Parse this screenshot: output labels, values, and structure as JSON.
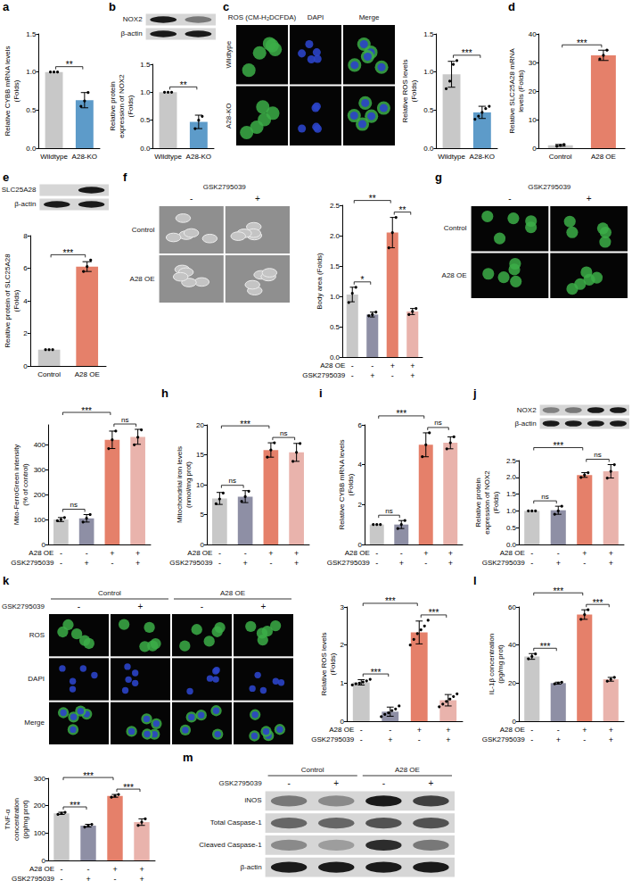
{
  "chart_data": [
    {
      "letter": "a",
      "type": "bar",
      "categories": [
        "Wildtype",
        "A28-KO"
      ],
      "values": [
        1.0,
        0.63
      ],
      "errors": [
        0,
        0.1
      ],
      "points": [
        [
          1,
          1,
          1
        ],
        [
          0.55,
          0.62,
          0.73
        ]
      ],
      "colors": [
        "#c8c8c8",
        "#5d9bc9"
      ],
      "ylabel": "Relative CYBB mRNA levels (Folds)",
      "ylim": [
        0,
        1.5
      ],
      "yticks": [
        {
          "value": 0,
          "label": "0.0"
        },
        0.5,
        {
          "value": 1,
          "label": "1.0"
        },
        1.5
      ],
      "annotations": [
        {
          "from": 0,
          "to": 1,
          "text": "**"
        }
      ]
    },
    {
      "type": "bar",
      "categories": [
        "Wildtype",
        "A28-KO"
      ],
      "values": [
        1.0,
        0.47
      ],
      "errors": [
        0,
        0.12
      ],
      "points": [
        [
          1,
          1,
          1
        ],
        [
          0.35,
          0.5,
          0.57
        ]
      ],
      "colors": [
        "#c8c8c8",
        "#5d9bc9"
      ],
      "ylabel": "Relative protein expression of NOX2 (Folds)",
      "ylim": [
        0,
        1.5
      ],
      "yticks": [
        {
          "value": 0,
          "label": "0.0"
        },
        0.5,
        {
          "value": 1,
          "label": "1.0"
        },
        1.5
      ],
      "annotations": [
        {
          "from": 0,
          "to": 1,
          "text": "**"
        }
      ]
    },
    {
      "type": "bar",
      "categories": [
        "Wildtype",
        "A28-KO"
      ],
      "values": [
        0.97,
        0.47
      ],
      "errors": [
        0.17,
        0.08
      ],
      "points": [
        [
          0.78,
          0.88,
          1.1,
          1.15
        ],
        [
          0.38,
          0.42,
          0.47,
          0.52,
          0.55
        ]
      ],
      "colors": [
        "#c8c8c8",
        "#5d9bc9"
      ],
      "ylabel": "Relative ROS levels (Folds)",
      "ylim": [
        0,
        1.5
      ],
      "yticks": [
        {
          "value": 0,
          "label": "0.0"
        },
        0.5,
        {
          "value": 1,
          "label": "1.0"
        },
        1.5
      ],
      "annotations": [
        {
          "from": 0,
          "to": 1,
          "text": "***"
        }
      ]
    },
    {
      "letter": "d",
      "type": "bar",
      "categories": [
        "Control",
        "A28 OE"
      ],
      "values": [
        1.0,
        32.5
      ],
      "errors": [
        0.3,
        1.8
      ],
      "points": [
        [
          0.7,
          1.0,
          1.3
        ],
        [
          31.2,
          32.5,
          34.3
        ]
      ],
      "colors": [
        "#c8c8c8",
        "#e5806a"
      ],
      "ylabel": "Relative SLC25A28 mRNA levels (Folds)",
      "ylim": [
        0,
        40
      ],
      "yticks": [
        0,
        10,
        20,
        30,
        40
      ],
      "annotations": [
        {
          "from": 0,
          "to": 1,
          "text": "***"
        }
      ]
    },
    {
      "type": "bar",
      "categories": [
        "Control",
        "A28 OE"
      ],
      "values": [
        1.0,
        6.1
      ],
      "errors": [
        0,
        0.3
      ],
      "points": [
        [
          1,
          1,
          1
        ],
        [
          5.8,
          6.1,
          6.5
        ]
      ],
      "colors": [
        "#c8c8c8",
        "#e5806a"
      ],
      "ylabel": "Realtive protein of SLC25A28 (Folds)",
      "ylim": [
        0,
        8
      ],
      "yticks": [
        0,
        2,
        4,
        6,
        8
      ],
      "annotations": [
        {
          "from": 0,
          "to": 1,
          "text": "***"
        }
      ]
    },
    {
      "type": "bar",
      "condition_rows": [
        {
          "label": "A28 OE",
          "signs": [
            "-",
            "-",
            "+",
            "+"
          ]
        },
        {
          "label": "GSK2795039",
          "signs": [
            "-",
            "+",
            "-",
            "+"
          ]
        }
      ],
      "values": [
        1.03,
        0.7,
        2.05,
        0.75
      ],
      "errors": [
        0.12,
        0.04,
        0.25,
        0.05
      ],
      "points": [
        [
          0.9,
          1.05,
          1.15
        ],
        [
          0.68,
          0.7,
          0.74
        ],
        [
          1.8,
          2.05,
          2.3
        ],
        [
          0.7,
          0.75,
          0.8
        ]
      ],
      "colors": [
        "#c8c8c8",
        "#8e8fa5",
        "#e5806a",
        "#e9b3ac"
      ],
      "ylabel": "Body area (Folds)",
      "ylim": [
        0,
        2.5
      ],
      "yticks": [
        {
          "value": 0,
          "label": "0.0"
        },
        0.5,
        {
          "value": 1,
          "label": "1.0"
        },
        1.5,
        {
          "value": 2,
          "label": "2.0"
        },
        2.5
      ],
      "annotations": [
        {
          "from": 0,
          "to": 1,
          "text": "*"
        },
        {
          "from": 2,
          "to": 3,
          "text": "**"
        },
        {
          "from": 0,
          "to": 2,
          "text": "**"
        }
      ]
    },
    {
      "type": "bar",
      "condition_rows": [
        {
          "label": "A28 OE",
          "signs": [
            "-",
            "-",
            "+",
            "+"
          ]
        },
        {
          "label": "GSK2795039",
          "signs": [
            "-",
            "+",
            "-",
            "+"
          ]
        }
      ],
      "values": [
        100,
        105,
        420,
        432
      ],
      "errors": [
        8,
        15,
        35,
        30
      ],
      "points": [
        [
          95,
          100,
          108
        ],
        [
          90,
          105,
          120
        ],
        [
          385,
          420,
          455
        ],
        [
          400,
          430,
          460
        ]
      ],
      "colors": [
        "#c8c8c8",
        "#8e8fa5",
        "#e5806a",
        "#e9b3ac"
      ],
      "ylabel": "Mito-FerroGreen intensity (% of control)",
      "ylim": [
        0,
        480
      ],
      "yticks": [
        0,
        100,
        200,
        300,
        400
      ],
      "annotations": [
        {
          "from": 0,
          "to": 1,
          "text": "ns"
        },
        {
          "from": 2,
          "to": 3,
          "text": "ns"
        },
        {
          "from": 0,
          "to": 2,
          "text": "***"
        }
      ]
    },
    {
      "letter": "h",
      "type": "bar",
      "condition_rows": [
        {
          "label": "A28 OE",
          "signs": [
            "-",
            "-",
            "+",
            "+"
          ]
        },
        {
          "label": "GSK2795039",
          "signs": [
            "-",
            "+",
            "-",
            "+"
          ]
        }
      ],
      "values": [
        7.7,
        8.0,
        15.8,
        15.4
      ],
      "errors": [
        1.0,
        1.0,
        1.2,
        1.5
      ],
      "points": [
        [
          6.8,
          7.6,
          8.6
        ],
        [
          7.2,
          8.0,
          8.9
        ],
        [
          14.6,
          15.8,
          17.0
        ],
        [
          13.9,
          15.4,
          16.9
        ]
      ],
      "colors": [
        "#c8c8c8",
        "#8e8fa5",
        "#e5806a",
        "#e9b3ac"
      ],
      "ylabel": "Mitochondrial iron levels (nmol/mg prot)",
      "ylim": [
        0,
        20
      ],
      "yticks": [
        0,
        5,
        10,
        15,
        20
      ],
      "annotations": [
        {
          "from": 0,
          "to": 1,
          "text": "ns"
        },
        {
          "from": 2,
          "to": 3,
          "text": "ns"
        },
        {
          "from": 0,
          "to": 2,
          "text": "***"
        }
      ]
    },
    {
      "letter": "i",
      "type": "bar",
      "condition_rows": [
        {
          "label": "A28 OE",
          "signs": [
            "-",
            "-",
            "+",
            "+"
          ]
        },
        {
          "label": "GSK2795039",
          "signs": [
            "-",
            "+",
            "-",
            "+"
          ]
        }
      ],
      "values": [
        1.0,
        1.0,
        5.0,
        5.1
      ],
      "errors": [
        0,
        0.2,
        0.6,
        0.3
      ],
      "points": [
        [
          1,
          1,
          1
        ],
        [
          0.8,
          1.0,
          1.2
        ],
        [
          4.4,
          5.0,
          5.6
        ],
        [
          4.8,
          5.1,
          5.4
        ]
      ],
      "colors": [
        "#c8c8c8",
        "#8e8fa5",
        "#e5806a",
        "#e9b3ac"
      ],
      "ylabel": "Relative CYBB mRNA levels (Folds)",
      "ylim": [
        0,
        6
      ],
      "yticks": [
        0,
        2,
        4,
        6
      ],
      "annotations": [
        {
          "from": 0,
          "to": 1,
          "text": "ns"
        },
        {
          "from": 2,
          "to": 3,
          "text": "ns"
        },
        {
          "from": 0,
          "to": 2,
          "text": "***"
        }
      ]
    },
    {
      "type": "bar",
      "condition_rows": [
        {
          "label": "A28 OE",
          "signs": [
            "-",
            "-",
            "+",
            "+"
          ]
        },
        {
          "label": "GSK2795039",
          "signs": [
            "-",
            "+",
            "-",
            "+"
          ]
        }
      ],
      "values": [
        1.0,
        1.02,
        2.07,
        2.18
      ],
      "errors": [
        0,
        0.12,
        0.07,
        0.2
      ],
      "points": [
        [
          1,
          1,
          1
        ],
        [
          0.9,
          1.0,
          1.14
        ],
        [
          2.0,
          2.07,
          2.14
        ],
        [
          1.98,
          2.18,
          2.38
        ]
      ],
      "colors": [
        "#c8c8c8",
        "#8e8fa5",
        "#e5806a",
        "#e9b3ac"
      ],
      "ylabel": "Relative protein expression of NOX2 (Folds)",
      "ylim": [
        0,
        2.5
      ],
      "yticks": [
        {
          "value": 0,
          "label": "0.0"
        },
        0.5,
        {
          "value": 1,
          "label": "1.0"
        },
        1.5,
        {
          "value": 2,
          "label": "2.0"
        },
        2.5
      ],
      "annotations": [
        {
          "from": 0,
          "to": 1,
          "text": "ns"
        },
        {
          "from": 2,
          "to": 3,
          "text": "ns"
        },
        {
          "from": 0,
          "to": 2,
          "text": "***"
        }
      ]
    },
    {
      "type": "bar",
      "condition_rows": [
        {
          "label": "A28 OE",
          "signs": [
            "-",
            "-",
            "+",
            "+"
          ]
        },
        {
          "label": "GSK2795039",
          "signs": [
            "-",
            "+",
            "-",
            "+"
          ]
        }
      ],
      "values": [
        1.02,
        0.25,
        2.33,
        0.55
      ],
      "errors": [
        0.07,
        0.12,
        0.3,
        0.15
      ],
      "points": [
        [
          0.95,
          0.98,
          1.0,
          1.03,
          1.06,
          1.1
        ],
        [
          0.12,
          0.18,
          0.22,
          0.28,
          0.32,
          0.4
        ],
        [
          2.0,
          2.15,
          2.3,
          2.4,
          2.5,
          2.65
        ],
        [
          0.38,
          0.45,
          0.52,
          0.58,
          0.65,
          0.72
        ]
      ],
      "colors": [
        "#c8c8c8",
        "#8e8fa5",
        "#e5806a",
        "#e9b3ac"
      ],
      "ylabel": "Relative ROS levels (Folds)",
      "ylim": [
        0,
        3
      ],
      "yticks": [
        0,
        1,
        2,
        3
      ],
      "annotations": [
        {
          "from": 0,
          "to": 1,
          "text": "***"
        },
        {
          "from": 2,
          "to": 3,
          "text": "***"
        },
        {
          "from": 0,
          "to": 2,
          "text": "***"
        }
      ]
    },
    {
      "letter": "l",
      "type": "bar",
      "condition_rows": [
        {
          "label": "A28 OE",
          "signs": [
            "-",
            "-",
            "+",
            "+"
          ]
        },
        {
          "label": "GSK2795039",
          "signs": [
            "-",
            "+",
            "-",
            "+"
          ]
        }
      ],
      "values": [
        34,
        20,
        56,
        22
      ],
      "errors": [
        1.5,
        0.5,
        2.5,
        1.0
      ],
      "points": [
        [
          32.8,
          34,
          35.3
        ],
        [
          19.6,
          20,
          20.5
        ],
        [
          53.5,
          56,
          58.5
        ],
        [
          21,
          22,
          23
        ]
      ],
      "colors": [
        "#c8c8c8",
        "#8e8fa5",
        "#e5806a",
        "#e9b3ac"
      ],
      "ylabel": "IL-1β concentration (pg/mg prot)",
      "ylim": [
        0,
        60
      ],
      "yticks": [
        0,
        20,
        40,
        60
      ],
      "annotations": [
        {
          "from": 0,
          "to": 1,
          "text": "***"
        },
        {
          "from": 2,
          "to": 3,
          "text": "***"
        },
        {
          "from": 0,
          "to": 2,
          "text": "***"
        }
      ]
    },
    {
      "type": "bar",
      "condition_rows": [
        {
          "label": "A28 OE",
          "signs": [
            "-",
            "-",
            "+",
            "+"
          ]
        },
        {
          "label": "GSK2795039",
          "signs": [
            "-",
            "+",
            "-",
            "+"
          ]
        }
      ],
      "values": [
        172,
        127,
        236,
        140
      ],
      "errors": [
        4,
        5,
        5,
        12
      ],
      "points": [
        [
          168,
          172,
          176
        ],
        [
          122,
          127,
          132
        ],
        [
          231,
          236,
          241
        ],
        [
          128,
          140,
          152
        ]
      ],
      "colors": [
        "#c8c8c8",
        "#8e8fa5",
        "#e5806a",
        "#e9b3ac"
      ],
      "ylabel": "TNF-α concentration (pg/mg prot)",
      "ylim": [
        0,
        300
      ],
      "yticks": [
        0,
        100,
        200,
        300
      ],
      "annotations": [
        {
          "from": 0,
          "to": 1,
          "text": "***"
        },
        {
          "from": 2,
          "to": 3,
          "text": "***"
        },
        {
          "from": 0,
          "to": 2,
          "text": "***"
        }
      ]
    }
  ],
  "blots": [
    {
      "letter": "b",
      "rows": [
        {
          "label": "NOX2",
          "bands": [
            1,
            0.5
          ]
        },
        {
          "label": "β-actin",
          "bands": [
            1,
            1
          ]
        }
      ]
    },
    {
      "letter": "e",
      "rows": [
        {
          "label": "SLC25A28",
          "bands": [
            0,
            1
          ]
        },
        {
          "label": "β-actin",
          "bands": [
            1,
            1
          ]
        }
      ]
    },
    {
      "letter": "j",
      "rows": [
        {
          "label": "NOX2",
          "bands": [
            0.45,
            0.5,
            1,
            1
          ]
        },
        {
          "label": "β-actin",
          "bands": [
            1,
            1,
            1,
            1
          ]
        }
      ]
    },
    {
      "letter": "m",
      "column_groups": [
        "Control",
        "A28 OE"
      ],
      "header": "GSK2795039",
      "column_labels": [
        "-",
        "+",
        "-",
        "+"
      ],
      "rows": [
        {
          "label": "iNOS",
          "bands": [
            0.5,
            0.4,
            1,
            0.8
          ]
        },
        {
          "label": "Total Caspase-1",
          "bands": [
            0.6,
            0.6,
            0.7,
            0.7
          ]
        },
        {
          "label": "Cleaved Caspase-1",
          "bands": [
            0.4,
            0.3,
            0.9,
            0.5
          ]
        },
        {
          "label": "β-actin",
          "bands": [
            1,
            1,
            1,
            1
          ]
        }
      ]
    }
  ],
  "images": [
    {
      "letter": "c",
      "column_labels": [
        "ROS (CM-H₂DCFDA)",
        "DAPI",
        "Merge"
      ],
      "row_labels": [
        "Wildtype",
        "A28-KO"
      ]
    },
    {
      "letter": "f",
      "header": "GSK2795039",
      "column_labels": [
        "-",
        "+"
      ],
      "row_labels": [
        "Control",
        "A28 OE"
      ]
    },
    {
      "letter": "g",
      "header": "GSK2795039",
      "column_labels": [
        "-",
        "+"
      ],
      "row_labels": [
        "Control",
        "A28 OE"
      ]
    },
    {
      "letter": "k",
      "column_groups": [
        "Control",
        "A28 OE"
      ],
      "header": "GSK2795039",
      "column_labels": [
        "-",
        "+",
        "-",
        "+"
      ],
      "row_labels": [
        "ROS",
        "DAPI",
        "Merge"
      ]
    }
  ]
}
